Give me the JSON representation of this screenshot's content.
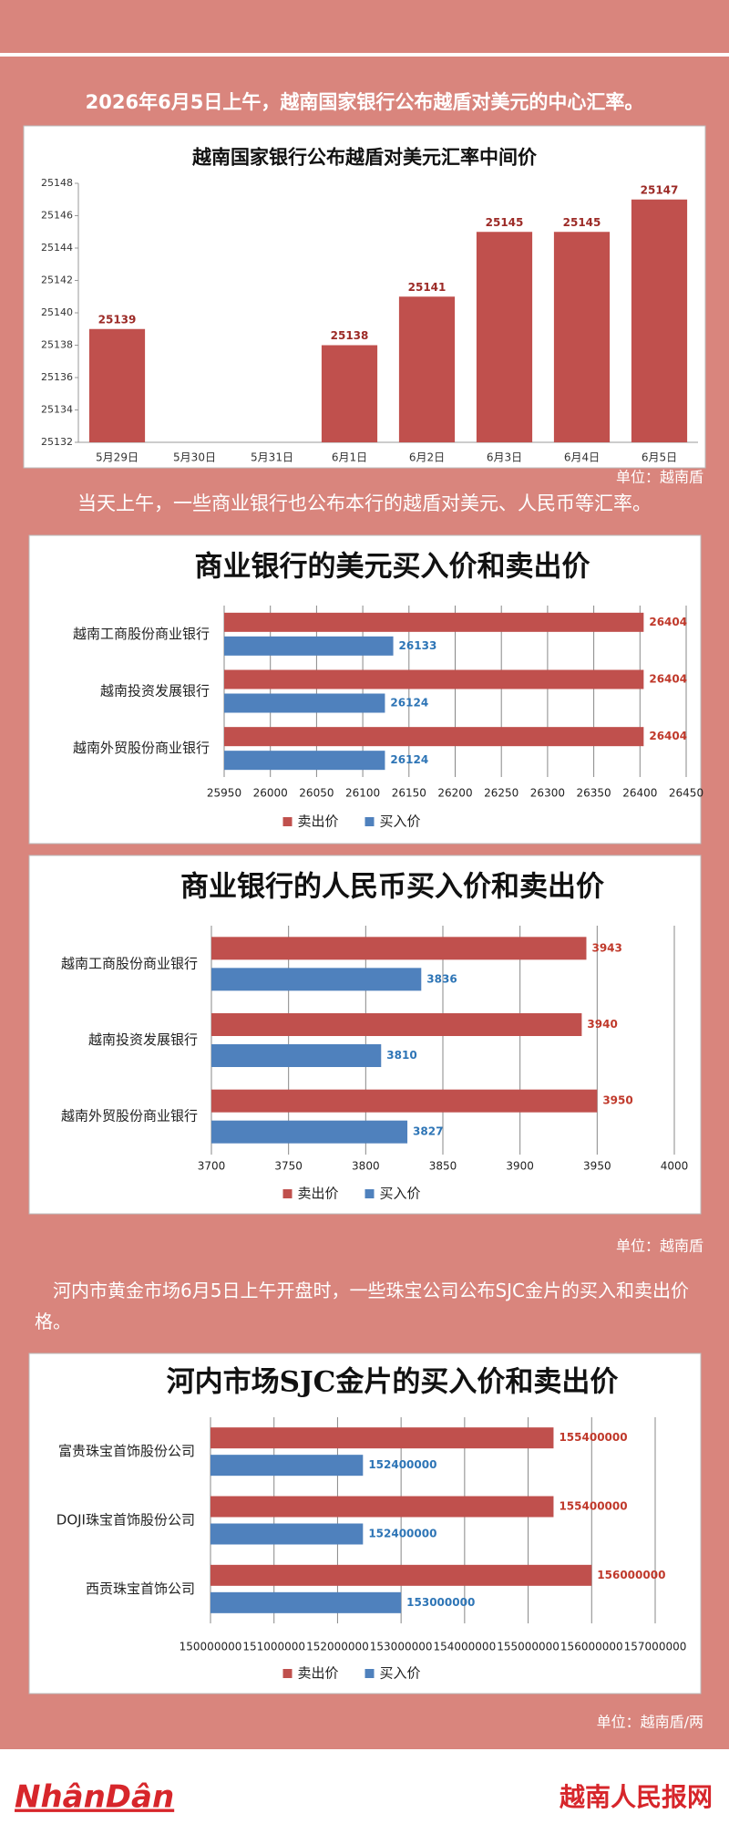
{
  "paragraphs": [
    "2026年6月5日上午，越南国家银行公布越盾对美元的中心汇率。",
    "当天上午，一些商业银行也公布本行的越盾对美元、人民币等汇率。",
    "河内市黄金市场6月5日上午开盘时，一些珠宝公司公布SJC金片的买入和卖出价格。"
  ],
  "units": [
    "单位：越南盾",
    "单位：越南盾",
    "单位：越南盾/两"
  ],
  "footer": {
    "logo": "NhânDân",
    "site": "越南人民报网"
  },
  "chart_data": [
    {
      "type": "bar",
      "title": "越南国家银行公布越盾对美元汇率中间价",
      "categories": [
        "5月29日",
        "5月30日",
        "5月31日",
        "6月1日",
        "6月2日",
        "6月3日",
        "6月4日",
        "6月5日"
      ],
      "values": [
        25139,
        null,
        null,
        25138,
        25141,
        25145,
        25145,
        25147
      ],
      "color": "#c0504d",
      "ylim": [
        25132,
        25148
      ],
      "yticks": [
        25132,
        25134,
        25136,
        25138,
        25140,
        25142,
        25144,
        25146,
        25148
      ],
      "grid": false
    },
    {
      "type": "barh",
      "title": "商业银行的美元买入价和卖出价",
      "categories": [
        "越南工商股份商业银行",
        "越南投资发展银行",
        "越南外贸股份商业银行"
      ],
      "series": [
        {
          "name": "卖出价",
          "color": "#c0504d",
          "values": [
            26404,
            26404,
            26404
          ]
        },
        {
          "name": "买入价",
          "color": "#4f81bd",
          "values": [
            26133,
            26124,
            26124
          ]
        }
      ],
      "xlim": [
        25950,
        26450
      ],
      "xticks": [
        25950,
        26000,
        26050,
        26100,
        26150,
        26200,
        26250,
        26300,
        26350,
        26400,
        26450
      ],
      "grid": true,
      "legend": "bottom"
    },
    {
      "type": "barh",
      "title": "商业银行的人民币买入价和卖出价",
      "categories": [
        "越南工商股份商业银行",
        "越南投资发展银行",
        "越南外贸股份商业银行"
      ],
      "series": [
        {
          "name": "卖出价",
          "color": "#c0504d",
          "values": [
            3943,
            3940,
            3950
          ]
        },
        {
          "name": "买入价",
          "color": "#4f81bd",
          "values": [
            3836,
            3810,
            3827
          ]
        }
      ],
      "xlim": [
        3700,
        4000
      ],
      "xticks": [
        3700,
        3750,
        3800,
        3850,
        3900,
        3950,
        4000
      ],
      "grid": true,
      "legend": "bottom"
    },
    {
      "type": "barh",
      "title": "河内市场SJC金片的买入价和卖出价",
      "categories": [
        "富贵珠宝首饰股份公司",
        "DOJI珠宝首饰股份公司",
        "西贡珠宝首饰公司"
      ],
      "series": [
        {
          "name": "卖出价",
          "color": "#c0504d",
          "values": [
            155400000,
            155400000,
            156000000
          ]
        },
        {
          "name": "买入价",
          "color": "#4f81bd",
          "values": [
            152400000,
            152400000,
            153000000
          ]
        }
      ],
      "xlim": [
        150000000,
        157000000
      ],
      "xticks": [
        150000000,
        151000000,
        152000000,
        153000000,
        154000000,
        155000000,
        156000000,
        157000000
      ],
      "grid": true,
      "legend": "bottom"
    }
  ]
}
